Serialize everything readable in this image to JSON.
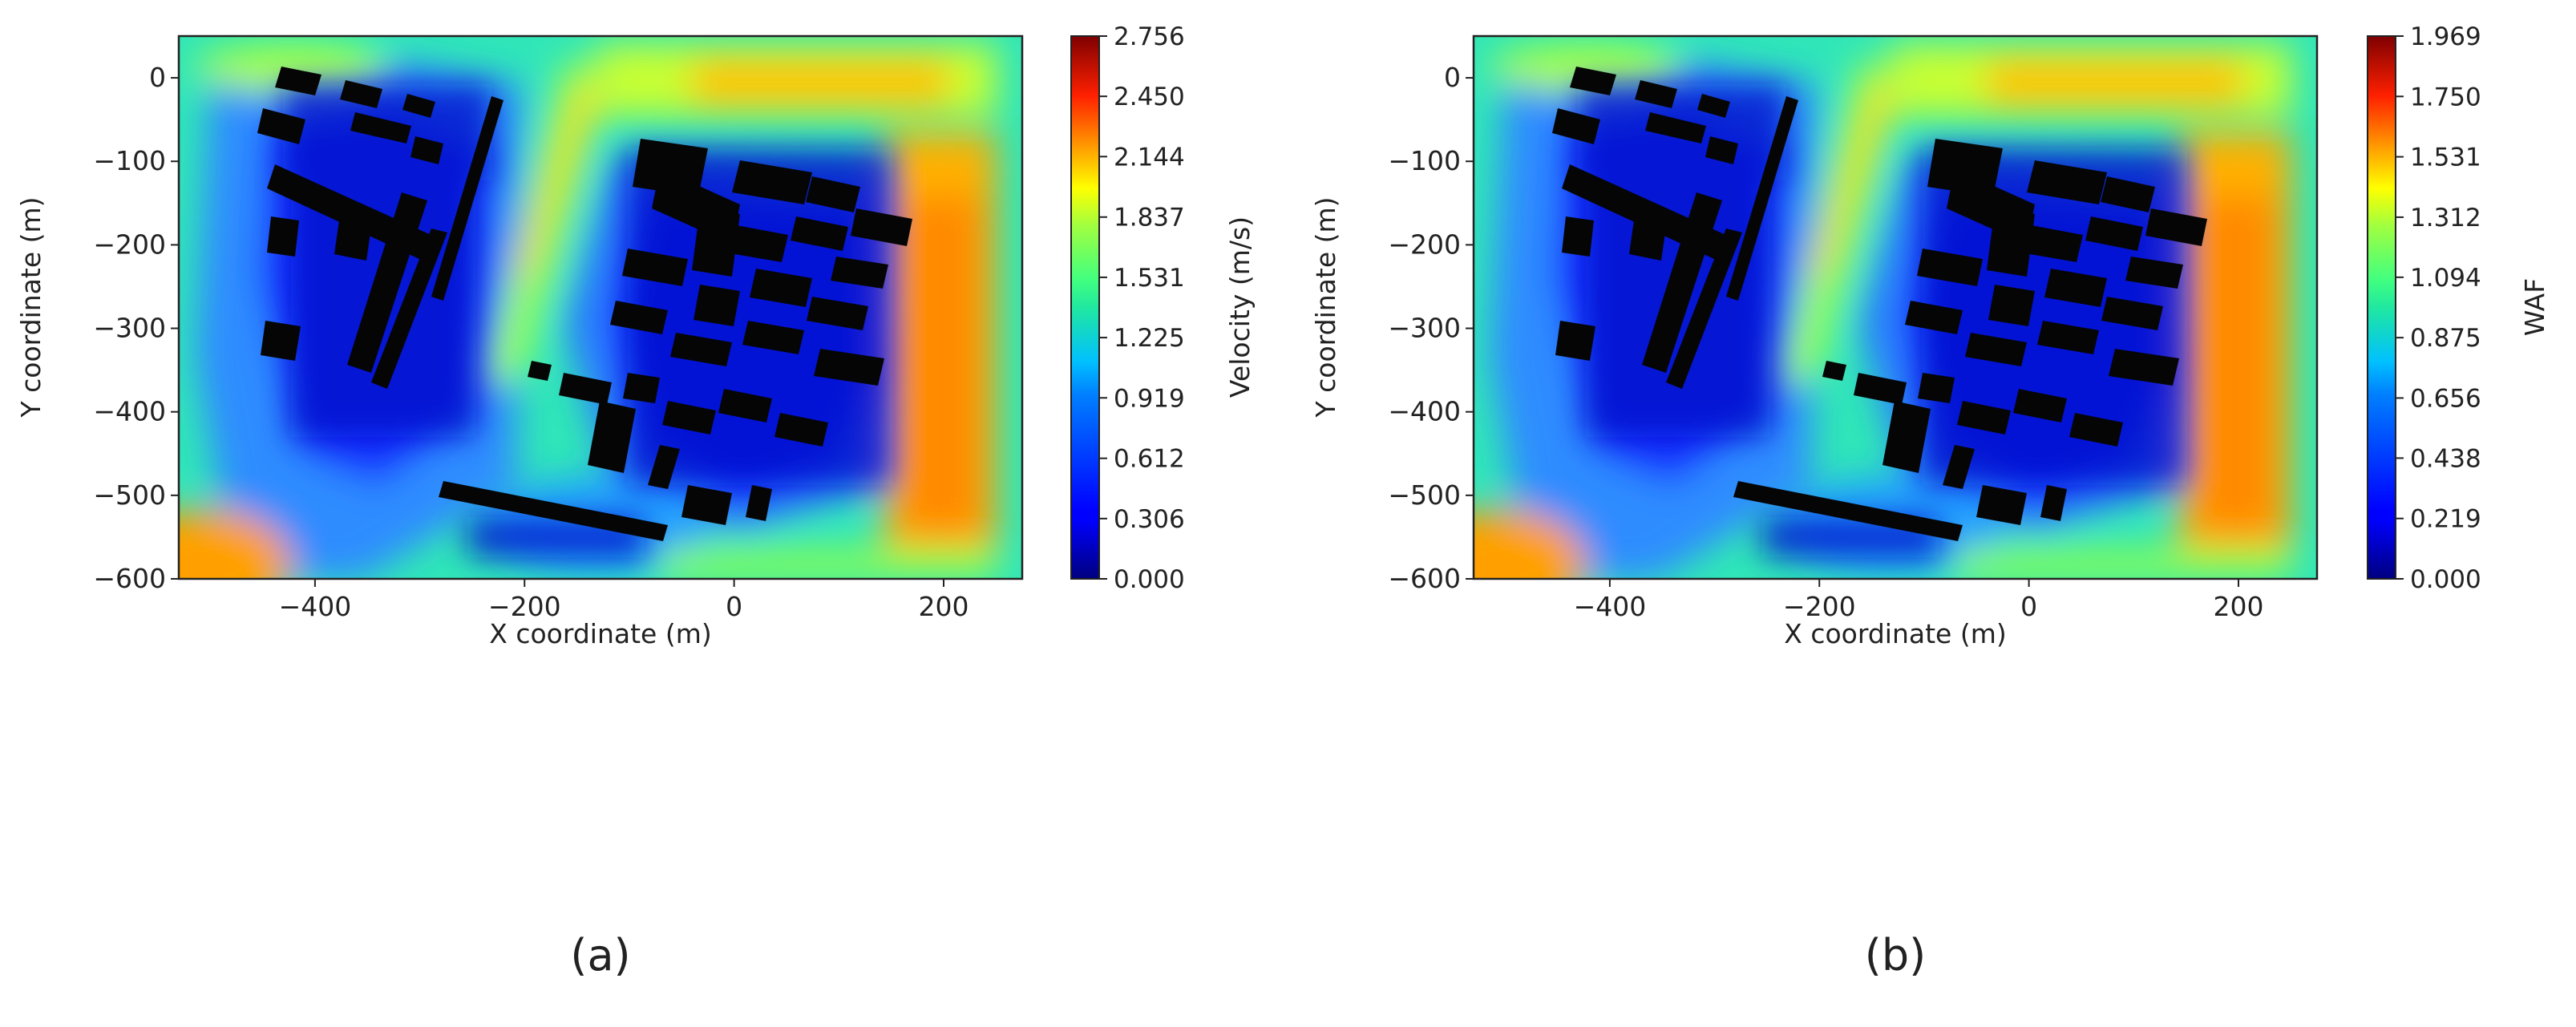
{
  "chart_data": [
    {
      "type": "heatmap",
      "panel_label": "(a)",
      "xlabel": "X coordinate (m)",
      "ylabel": "Y coordinate (m)",
      "xlim": [
        -530,
        275
      ],
      "ylim": [
        -600,
        50
      ],
      "x_ticks": [
        -400,
        -200,
        0,
        200
      ],
      "x_tick_labels": [
        "−400",
        "−200",
        "0",
        "200"
      ],
      "y_ticks": [
        0,
        -100,
        -200,
        -300,
        -400,
        -500,
        -600
      ],
      "y_tick_labels": [
        "0",
        "−100",
        "−200",
        "−300",
        "−400",
        "−500",
        "−600"
      ],
      "colorbar": {
        "label": "Velocity (m/s)",
        "min": 0.0,
        "max": 2.756,
        "ticks": [
          0.0,
          0.306,
          0.612,
          0.919,
          1.225,
          1.531,
          1.837,
          2.144,
          2.45,
          2.756
        ],
        "tick_labels": [
          "0.000",
          "0.306",
          "0.612",
          "0.919",
          "1.225",
          "1.531",
          "1.837",
          "2.144",
          "2.450",
          "2.756"
        ],
        "colormap": "jet"
      }
    },
    {
      "type": "heatmap",
      "panel_label": "(b)",
      "xlabel": "X coordinate (m)",
      "ylabel": "Y coordinate (m)",
      "xlim": [
        -530,
        275
      ],
      "ylim": [
        -600,
        50
      ],
      "x_ticks": [
        -400,
        -200,
        0,
        200
      ],
      "x_tick_labels": [
        "−400",
        "−200",
        "0",
        "200"
      ],
      "y_ticks": [
        0,
        -100,
        -200,
        -300,
        -400,
        -500,
        -600
      ],
      "y_tick_labels": [
        "0",
        "−100",
        "−200",
        "−300",
        "−400",
        "−500",
        "−600"
      ],
      "colorbar": {
        "label": "WAF",
        "min": 0.0,
        "max": 1.969,
        "ticks": [
          0.0,
          0.219,
          0.438,
          0.656,
          0.875,
          1.094,
          1.312,
          1.531,
          1.75,
          1.969
        ],
        "tick_labels": [
          "0.000",
          "0.219",
          "0.438",
          "0.656",
          "0.875",
          "1.094",
          "1.312",
          "1.531",
          "1.750",
          "1.969"
        ],
        "colormap": "jet"
      }
    }
  ]
}
